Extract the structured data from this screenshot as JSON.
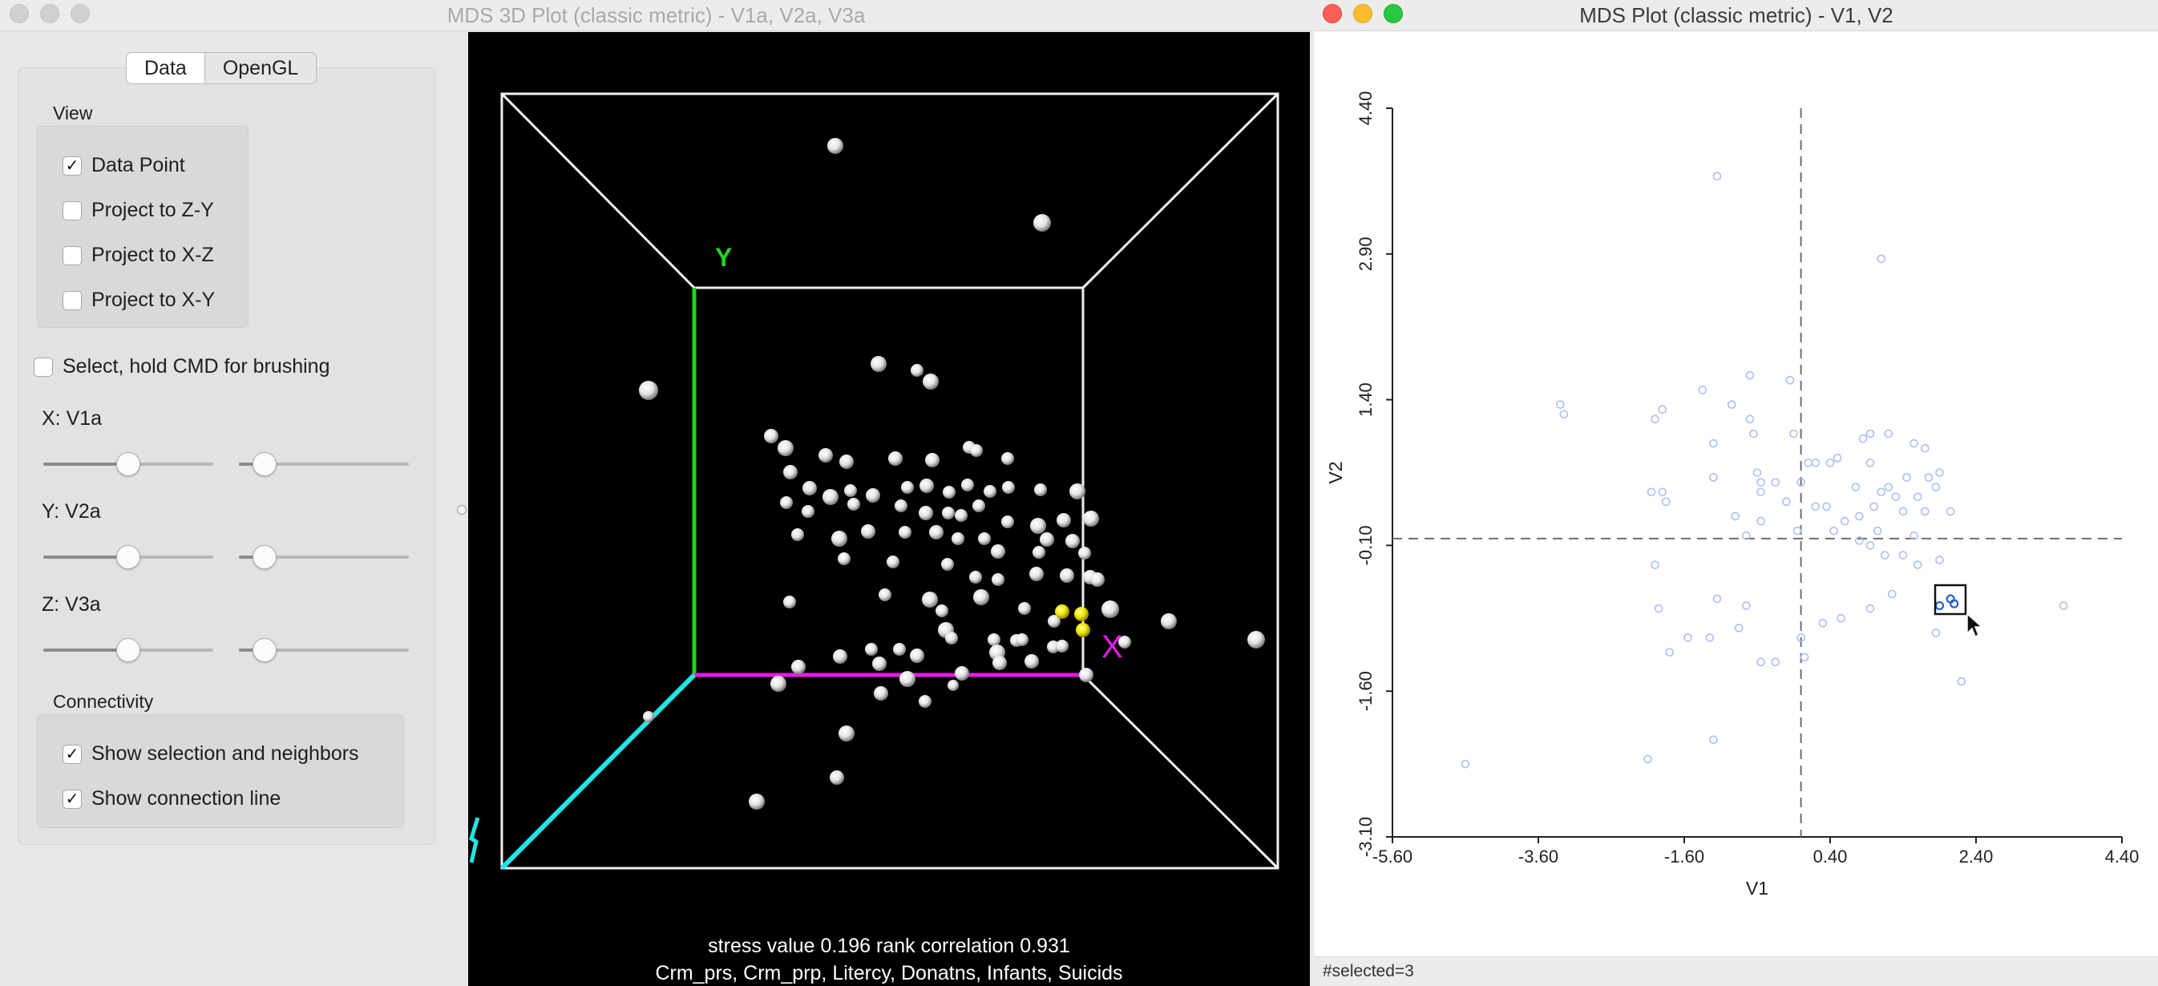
{
  "left_window": {
    "title": "MDS 3D Plot (classic metric) - V1a, V2a, V3a",
    "tabs": [
      {
        "label": "Data",
        "selected": false
      },
      {
        "label": "OpenGL",
        "selected": true
      }
    ],
    "view": {
      "heading": "View",
      "checkboxes": [
        {
          "label": "Data Point",
          "checked": true
        },
        {
          "label": "Project to Z-Y",
          "checked": false
        },
        {
          "label": "Project to X-Z",
          "checked": false
        },
        {
          "label": "Project to X-Y",
          "checked": false
        }
      ]
    },
    "brushing": {
      "label": "Select, hold CMD for brushing",
      "checked": false
    },
    "axes": [
      {
        "label": "X: V1a",
        "slider1": 0.5,
        "slider2": 0.15
      },
      {
        "label": "Y: V2a",
        "slider1": 0.5,
        "slider2": 0.15
      },
      {
        "label": "Z: V3a",
        "slider1": 0.5,
        "slider2": 0.15
      }
    ],
    "connectivity": {
      "heading": "Connectivity",
      "checkboxes": [
        {
          "label": "Show selection and neighbors",
          "checked": true
        },
        {
          "label": "Show connection line",
          "checked": true
        }
      ]
    },
    "gl": {
      "y_axis_letter": "Y",
      "x_axis_letter": "X",
      "stress_text": "stress value 0.196 rank correlation 0.931",
      "variables_text": "Crm_prs, Crm_prp, Litercy, Donatns, Infants, Suicids",
      "colors": {
        "y_axis": "#1fd41f",
        "x_axis": "#e81ae8",
        "z_axis": "#22e5e5",
        "selected": "#f2e600",
        "point": "#f3f3f3"
      }
    }
  },
  "right_window": {
    "title": "MDS Plot (classic metric) - V1, V2",
    "status": "#selected=3",
    "point_color": "#a9bff0",
    "selected_color": "#1f5fd6"
  },
  "chart_data": {
    "type": "scatter",
    "xlabel": "V1",
    "ylabel": "V2",
    "xlim": [
      -5.6,
      4.4
    ],
    "ylim": [
      -3.1,
      4.4
    ],
    "x_ticks": [
      "-5.60",
      "-3.60",
      "-1.60",
      "0.40",
      "2.40",
      "4.40"
    ],
    "y_ticks": [
      "-3.10",
      "-1.60",
      "-0.10",
      "1.40",
      "2.90",
      "4.40"
    ],
    "reference_lines": {
      "x": 0.0,
      "y": -0.03
    },
    "series": [
      {
        "selected": false,
        "x": [
          -4.6,
          -1.15,
          1.1,
          -0.7,
          -1.9,
          -3.25,
          -3.3,
          -2.0,
          -1.35,
          -1.2,
          -0.95,
          -0.7,
          -0.65,
          -0.55,
          -0.15,
          -0.1,
          0.4,
          0.85,
          0.95,
          1.2,
          1.55,
          1.7,
          1.9,
          -2.05,
          -1.85,
          -1.9,
          -1.2,
          -0.9,
          -0.6,
          -0.55,
          -0.35,
          0.1,
          0.2,
          0.5,
          0.75,
          0.95,
          1.1,
          1.2,
          1.45,
          1.6,
          1.75,
          1.85,
          -0.55,
          -0.2,
          0.0,
          0.2,
          0.35,
          0.6,
          0.8,
          1.0,
          1.05,
          1.3,
          1.4,
          1.55,
          1.7,
          2.05,
          -2.0,
          -0.75,
          -0.05,
          0.45,
          0.8,
          0.95,
          1.15,
          1.4,
          1.6,
          1.9,
          -1.95,
          -1.8,
          -1.55,
          -1.25,
          -0.85,
          -0.55,
          -0.35,
          0.05,
          0.3,
          0.55,
          0.95,
          1.25,
          1.85,
          2.2,
          3.6,
          0.0,
          -0.75,
          -1.15,
          -1.2,
          -2.1
        ],
        "y": [
          -2.35,
          3.7,
          2.85,
          1.65,
          1.3,
          1.25,
          1.35,
          1.2,
          1.5,
          0.95,
          1.35,
          1.2,
          1.05,
          0.55,
          1.6,
          1.05,
          0.75,
          1.0,
          1.05,
          1.05,
          0.95,
          0.9,
          0.65,
          0.45,
          0.35,
          0.45,
          0.6,
          0.2,
          0.65,
          0.45,
          0.55,
          0.75,
          0.75,
          0.8,
          0.5,
          0.75,
          0.45,
          0.5,
          0.6,
          0.4,
          0.6,
          0.5,
          0.15,
          0.35,
          0.55,
          0.3,
          0.3,
          0.15,
          0.2,
          0.3,
          0.05,
          0.4,
          0.25,
          0.0,
          0.25,
          0.25,
          -0.3,
          0.0,
          0.05,
          0.05,
          -0.05,
          -0.1,
          -0.2,
          -0.2,
          -0.3,
          -0.25,
          -0.75,
          -1.2,
          -1.05,
          -1.05,
          -0.95,
          -1.3,
          -1.3,
          -1.25,
          -0.9,
          -0.85,
          -0.75,
          -0.6,
          -1.0,
          -1.5,
          -0.72,
          -1.05,
          -0.72,
          -0.65,
          -2.1,
          -2.3
        ]
      },
      {
        "selected": true,
        "x": [
          1.9,
          2.05,
          2.1
        ],
        "y": [
          -0.72,
          -0.65,
          -0.7
        ]
      }
    ]
  }
}
